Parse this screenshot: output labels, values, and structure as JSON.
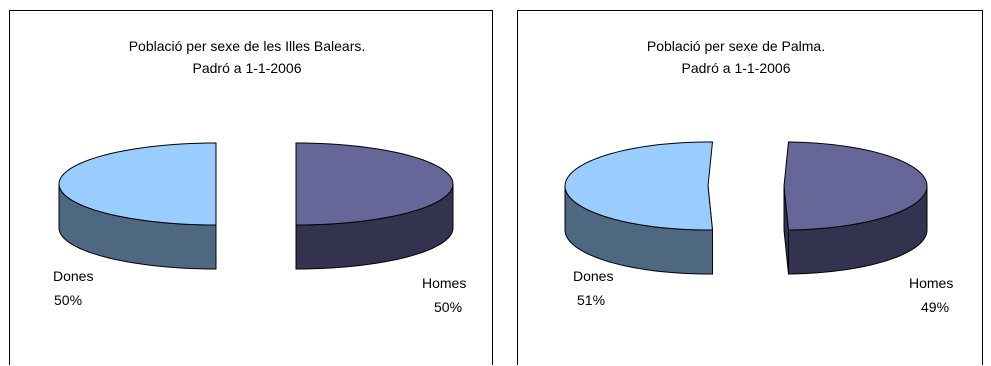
{
  "chart_data": [
    {
      "type": "pie",
      "title": [
        "Població per sexe de les Illes Balears.",
        "Padró a 1-1-2006"
      ],
      "categories": [
        "Dones",
        "Homes"
      ],
      "values": [
        50,
        50
      ],
      "value_labels": [
        "50%",
        "50%"
      ],
      "style": "3d-exploded",
      "colors": {
        "Dones": {
          "top": "#99CCFF",
          "side": "#4F6882"
        },
        "Homes": {
          "top": "#666699",
          "side": "#33334F"
        }
      },
      "legend": "none"
    },
    {
      "type": "pie",
      "title": [
        "Població per sexe de Palma.",
        "Padró a 1-1-2006"
      ],
      "categories": [
        "Dones",
        "Homes"
      ],
      "values": [
        51,
        49
      ],
      "value_labels": [
        "51%",
        "49%"
      ],
      "style": "3d-exploded",
      "colors": {
        "Dones": {
          "top": "#99CCFF",
          "side": "#4F6882"
        },
        "Homes": {
          "top": "#666699",
          "side": "#33334F"
        }
      },
      "legend": "none"
    }
  ]
}
